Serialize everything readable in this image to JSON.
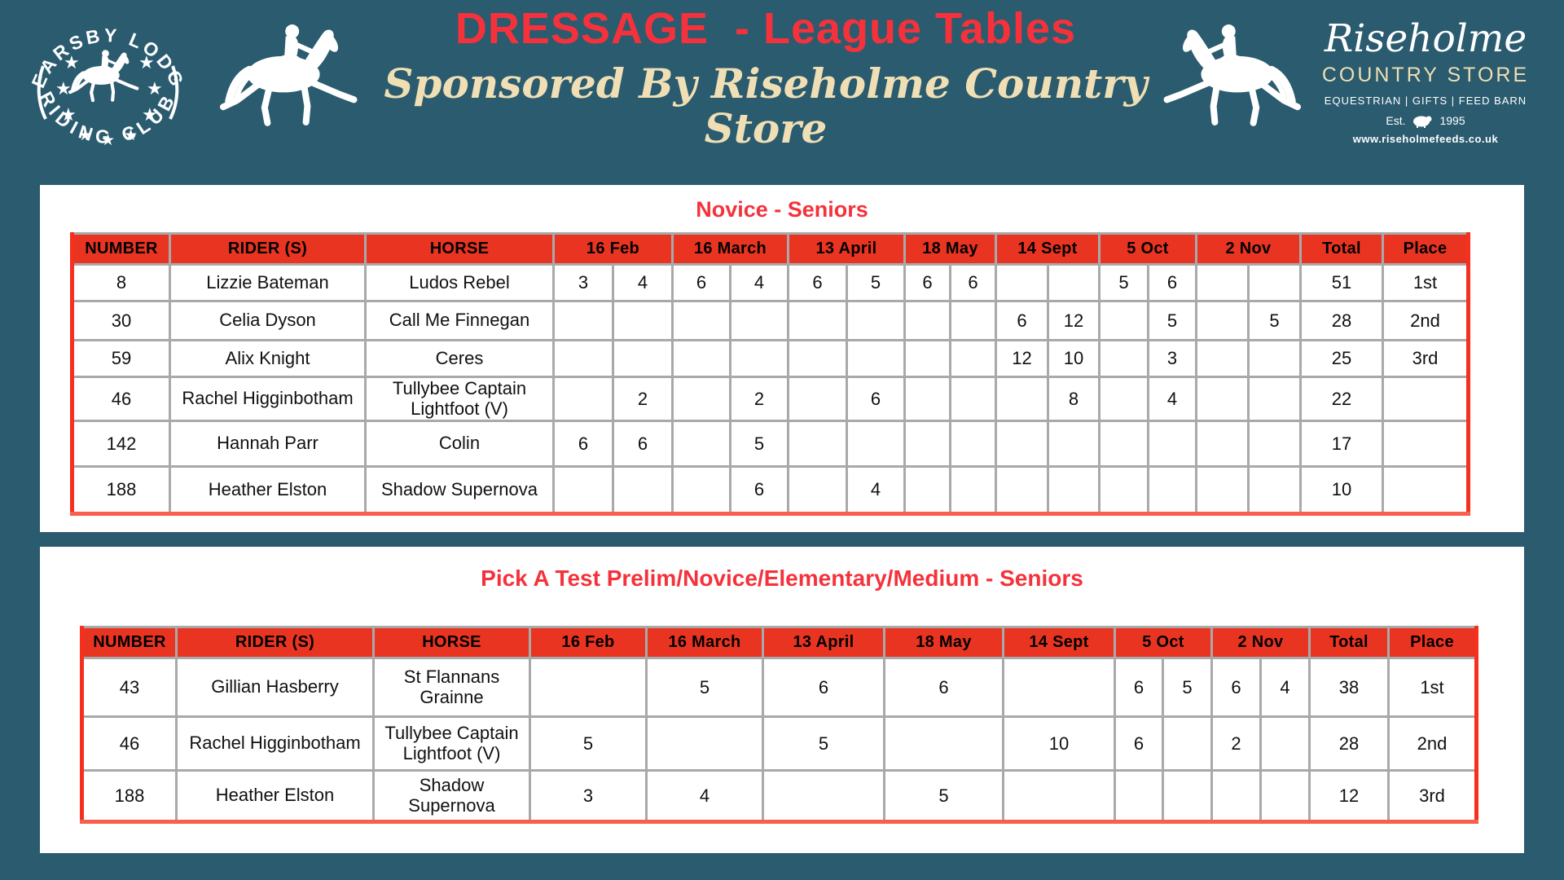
{
  "colors": {
    "background": "#2a5b6f",
    "title_red": "#f5323b",
    "header_cell_red": "#ea3422",
    "cream": "#f0dfb4",
    "table_border_red": "#f5301d",
    "cell_border_gray": "#a9a9a9"
  },
  "header": {
    "club_badge": {
      "top_text": "REARSBY LODGE",
      "bottom_text": "RIDING CLUB"
    },
    "title": "DRESSAGE  - League Tables",
    "subtitle": "Sponsored By Riseholme Country Store",
    "sponsor": {
      "name": "Riseholme",
      "store": "COUNTRY STORE",
      "departments": "EQUESTRIAN  |  GIFTS  |  FEED BARN",
      "est_label": "Est.",
      "est_year": "1995",
      "website": "www.riseholmefeeds.co.uk"
    }
  },
  "tables": [
    {
      "title": "Novice - Seniors",
      "columns": {
        "number": "NUMBER",
        "rider": "RIDER (S)",
        "horse": "HORSE",
        "total": "Total",
        "place": "Place",
        "dates": [
          "16 Feb",
          "16 March",
          "13 April",
          "18 May",
          "14 Sept",
          "5 Oct",
          "2 Nov"
        ]
      },
      "rows": [
        {
          "number": "8",
          "rider": "Lizzie Bateman",
          "horse": "Ludos Rebel",
          "scores": [
            [
              "3",
              "4"
            ],
            [
              "6",
              "4"
            ],
            [
              "6",
              "5"
            ],
            [
              "6",
              "6"
            ],
            [
              "",
              ""
            ],
            [
              "5",
              "6"
            ],
            [
              "",
              ""
            ]
          ],
          "total": "51",
          "place": "1st"
        },
        {
          "number": "30",
          "rider": "Celia Dyson",
          "horse": "Call Me Finnegan",
          "scores": [
            [
              "",
              ""
            ],
            [
              "",
              ""
            ],
            [
              "",
              ""
            ],
            [
              "",
              ""
            ],
            [
              "6",
              "12"
            ],
            [
              "",
              "5"
            ],
            [
              "",
              "5"
            ]
          ],
          "total": "28",
          "place": "2nd"
        },
        {
          "number": "59",
          "rider": "Alix Knight",
          "horse": "Ceres",
          "scores": [
            [
              "",
              ""
            ],
            [
              "",
              ""
            ],
            [
              "",
              ""
            ],
            [
              "",
              ""
            ],
            [
              "12",
              "10"
            ],
            [
              "",
              "3"
            ],
            [
              "",
              ""
            ]
          ],
          "total": "25",
          "place": "3rd"
        },
        {
          "number": "46",
          "rider": "Rachel Higginbotham",
          "horse": "Tullybee Captain Lightfoot (V)",
          "scores": [
            [
              "",
              "2"
            ],
            [
              "",
              "2"
            ],
            [
              "",
              "6"
            ],
            [
              "",
              ""
            ],
            [
              "",
              "8"
            ],
            [
              "",
              "4"
            ],
            [
              "",
              ""
            ]
          ],
          "total": "22",
          "place": ""
        },
        {
          "number": "142",
          "rider": "Hannah Parr",
          "horse": "Colin",
          "scores": [
            [
              "6",
              "6"
            ],
            [
              "",
              "5"
            ],
            [
              "",
              ""
            ],
            [
              "",
              ""
            ],
            [
              "",
              ""
            ],
            [
              "",
              ""
            ],
            [
              "",
              ""
            ]
          ],
          "total": "17",
          "place": ""
        },
        {
          "number": "188",
          "rider": "Heather Elston",
          "horse": "Shadow Supernova",
          "scores": [
            [
              "",
              ""
            ],
            [
              "",
              "6"
            ],
            [
              "",
              "4"
            ],
            [
              "",
              ""
            ],
            [
              "",
              ""
            ],
            [
              "",
              ""
            ],
            [
              "",
              ""
            ]
          ],
          "total": "10",
          "place": ""
        }
      ]
    },
    {
      "title": "Pick A Test Prelim/Novice/Elementary/Medium - Seniors",
      "columns": {
        "number": "NUMBER",
        "rider": "RIDER (S)",
        "horse": "HORSE",
        "total": "Total",
        "place": "Place",
        "dates": [
          "16 Feb",
          "16 March",
          "13 April",
          "18 May",
          "14 Sept",
          "5 Oct",
          "2 Nov"
        ]
      },
      "rows": [
        {
          "number": "43",
          "rider": "Gillian Hasberry",
          "horse": "St Flannans Grainne",
          "scores": [
            [
              ""
            ],
            [
              "5"
            ],
            [
              "6"
            ],
            [
              "6"
            ],
            [
              ""
            ],
            [
              "6",
              "5"
            ],
            [
              "6",
              "4"
            ]
          ],
          "total": "38",
          "place": "1st"
        },
        {
          "number": "46",
          "rider": "Rachel Higginbotham",
          "horse": "Tullybee Captain Lightfoot (V)",
          "scores": [
            [
              "5"
            ],
            [
              ""
            ],
            [
              "5"
            ],
            [
              ""
            ],
            [
              "10"
            ],
            [
              "6",
              ""
            ],
            [
              "2",
              ""
            ]
          ],
          "total": "28",
          "place": "2nd"
        },
        {
          "number": "188",
          "rider": "Heather Elston",
          "horse": "Shadow Supernova",
          "scores": [
            [
              "3"
            ],
            [
              "4"
            ],
            [
              ""
            ],
            [
              "5"
            ],
            [
              ""
            ],
            [
              "",
              ""
            ],
            [
              "",
              ""
            ]
          ],
          "total": "12",
          "place": "3rd"
        }
      ]
    }
  ]
}
